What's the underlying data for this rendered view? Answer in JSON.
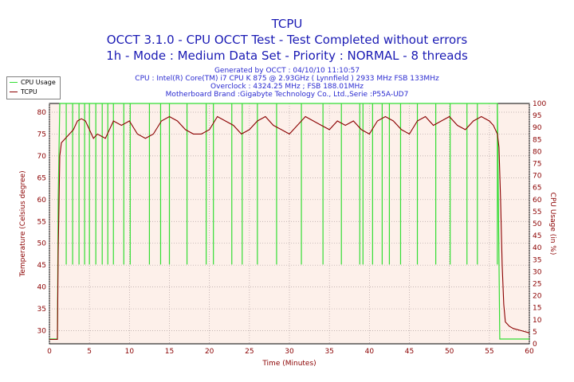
{
  "header": {
    "title": "TCPU",
    "subtitle1": "OCCT 3.1.0 - CPU OCCT Test - Test Completed without errors",
    "subtitle2": "1h - Mode : Medium Data Set - Priority : NORMAL - 8 threads",
    "info": [
      "Generated by OCCT : 04/10/10 11:10:57",
      "CPU : Intel(R) Core(TM) i7 CPU K 875 @ 2.93GHz ( Lynnfield ) 2933 MHz FSB 133MHz",
      "Overclock : 4324.25 MHz ; FSB 188.01MHz",
      "Motherboard Brand :Gigabyte Technology Co., Ltd.,Serie :P55A-UD7"
    ]
  },
  "legend": {
    "items": [
      {
        "label": "CPU Usage",
        "color": "#33dd33"
      },
      {
        "label": "TCPU",
        "color": "#8b0000"
      }
    ]
  },
  "chart_data": {
    "type": "line",
    "xlabel": "Time (Minutes)",
    "ylabel_left": "Temperature (Celsius degree)",
    "ylabel_right": "CPU Usage (in %)",
    "xlim": [
      0,
      60
    ],
    "ylim_left": [
      27,
      82
    ],
    "ylim_right": [
      0,
      100
    ],
    "x_ticks": [
      0,
      5,
      10,
      15,
      20,
      25,
      30,
      35,
      40,
      45,
      50,
      55,
      60
    ],
    "y_left_ticks": [
      30,
      35,
      40,
      45,
      50,
      55,
      60,
      65,
      70,
      75,
      80
    ],
    "y_right_ticks": [
      0,
      5,
      10,
      15,
      20,
      25,
      30,
      35,
      40,
      45,
      50,
      55,
      60,
      65,
      70,
      75,
      80,
      85,
      90,
      95,
      100
    ],
    "grid": true,
    "series": [
      {
        "name": "TCPU",
        "axis": "left",
        "color": "#8b0000",
        "points": [
          [
            0,
            28
          ],
          [
            1,
            28
          ],
          [
            1.1,
            48
          ],
          [
            1.3,
            70
          ],
          [
            1.5,
            73
          ],
          [
            2,
            74
          ],
          [
            2.5,
            75
          ],
          [
            3,
            76
          ],
          [
            3.5,
            78
          ],
          [
            4,
            78.5
          ],
          [
            4.5,
            78
          ],
          [
            5,
            76
          ],
          [
            5.5,
            74
          ],
          [
            6,
            75
          ],
          [
            7,
            74
          ],
          [
            8,
            78
          ],
          [
            9,
            77
          ],
          [
            10,
            78
          ],
          [
            11,
            75
          ],
          [
            12,
            74
          ],
          [
            13,
            75
          ],
          [
            14,
            78
          ],
          [
            15,
            79
          ],
          [
            16,
            78
          ],
          [
            17,
            76
          ],
          [
            18,
            75
          ],
          [
            19,
            75
          ],
          [
            20,
            76
          ],
          [
            21,
            79
          ],
          [
            22,
            78
          ],
          [
            23,
            77
          ],
          [
            24,
            75
          ],
          [
            25,
            76
          ],
          [
            26,
            78
          ],
          [
            27,
            79
          ],
          [
            28,
            77
          ],
          [
            29,
            76
          ],
          [
            30,
            75
          ],
          [
            31,
            77
          ],
          [
            32,
            79
          ],
          [
            33,
            78
          ],
          [
            34,
            77
          ],
          [
            35,
            76
          ],
          [
            36,
            78
          ],
          [
            37,
            77
          ],
          [
            38,
            78
          ],
          [
            39,
            76
          ],
          [
            40,
            75
          ],
          [
            41,
            78
          ],
          [
            42,
            79
          ],
          [
            43,
            78
          ],
          [
            44,
            76
          ],
          [
            45,
            75
          ],
          [
            46,
            78
          ],
          [
            47,
            79
          ],
          [
            48,
            77
          ],
          [
            49,
            78
          ],
          [
            50,
            79
          ],
          [
            51,
            77
          ],
          [
            52,
            76
          ],
          [
            53,
            78
          ],
          [
            54,
            79
          ],
          [
            55,
            78
          ],
          [
            55.5,
            77
          ],
          [
            56,
            75
          ],
          [
            56.2,
            72
          ],
          [
            56.4,
            60
          ],
          [
            56.6,
            45
          ],
          [
            56.8,
            36
          ],
          [
            57,
            32
          ],
          [
            57.5,
            31
          ],
          [
            58,
            30.5
          ],
          [
            59,
            30
          ],
          [
            60,
            29.5
          ]
        ]
      },
      {
        "name": "CPU Usage",
        "axis": "right",
        "color": "#33dd33",
        "points": [
          [
            0,
            2
          ],
          [
            1,
            2
          ],
          [
            1.1,
            60
          ],
          [
            1.3,
            100
          ],
          [
            56,
            100
          ],
          [
            56.3,
            2
          ],
          [
            60,
            2
          ]
        ],
        "dips_to": 33,
        "dip_x": [
          2.1,
          2.9,
          3.7,
          4.4,
          5.0,
          5.8,
          6.6,
          7.3,
          8.0,
          9.3,
          10.1,
          12.5,
          13.9,
          15.0,
          17.2,
          19.6,
          20.5,
          22.8,
          24.1,
          26.0,
          28.4,
          31.5,
          34.2,
          36.5,
          38.8,
          39.2,
          40.4,
          41.6,
          42.5,
          43.9,
          46.0,
          48.3,
          50.1,
          52.2,
          53.5,
          56.0
        ]
      }
    ]
  }
}
